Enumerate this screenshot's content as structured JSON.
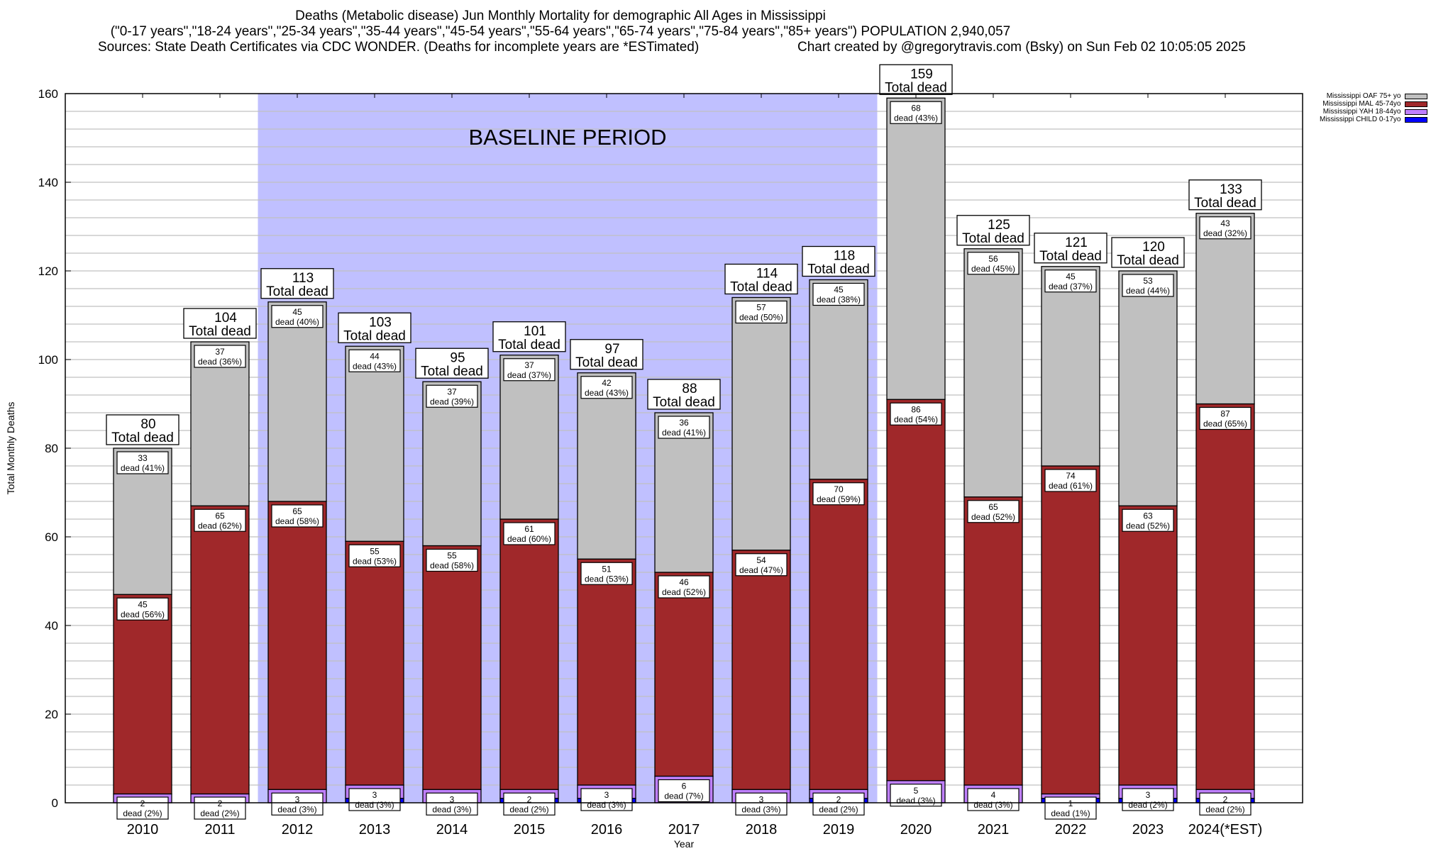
{
  "header": {
    "title": "Deaths (Metabolic disease) Jun Monthly Mortality for demographic All Ages in Mississippi",
    "subtitle": "(\"0-17 years\",\"18-24 years\",\"25-34 years\",\"35-44 years\",\"45-54 years\",\"55-64 years\",\"65-74 years\",\"75-84 years\",\"85+ years\") POPULATION 2,940,057",
    "sources": "Sources: State Death Certificates via CDC WONDER. (Deaths for incomplete years are *ESTimated)",
    "credit": "Chart created by @gregorytravis.com (Bsky) on Sun Feb 02 10:05:05 2025"
  },
  "chart_data": {
    "type": "bar",
    "stacked": true,
    "title": "Deaths (Metabolic disease) Jun Monthly Mortality for demographic All Ages in Mississippi",
    "xlabel": "Year",
    "ylabel": "Total Monthly Deaths",
    "ylim": [
      0,
      160
    ],
    "yticks": [
      0,
      20,
      40,
      60,
      80,
      100,
      120,
      140,
      160
    ],
    "grid": true,
    "legend_position": "top-right",
    "categories": [
      "2010",
      "2011",
      "2012",
      "2013",
      "2014",
      "2015",
      "2016",
      "2017",
      "2018",
      "2019",
      "2020",
      "2021",
      "2022",
      "2023",
      "2024(*EST)"
    ],
    "totals": [
      80,
      104,
      113,
      103,
      95,
      101,
      97,
      88,
      114,
      118,
      159,
      125,
      121,
      120,
      133
    ],
    "total_suffix": "Total dead",
    "label_prefix": "dead",
    "series": [
      {
        "name": "Mississippi CHILD 0-17yo",
        "color": "#0000ff",
        "values": [
          0,
          0,
          0,
          1,
          0,
          1,
          1,
          0,
          0,
          1,
          0,
          0,
          1,
          1,
          1
        ]
      },
      {
        "name": "Mississippi YAH 18-44yo",
        "color": "#c080ff",
        "values": [
          2,
          2,
          3,
          3,
          3,
          2,
          3,
          6,
          3,
          2,
          5,
          4,
          1,
          3,
          2
        ],
        "pct": [
          "2%",
          "2%",
          "3%",
          "3%",
          "3%",
          "2%",
          "3%",
          "7%",
          "3%",
          "2%",
          "3%",
          "3%",
          "1%",
          "2%",
          "2%"
        ]
      },
      {
        "name": "Mississippi MAL 45-74yo",
        "color": "#a0282a",
        "values": [
          45,
          65,
          65,
          55,
          55,
          61,
          51,
          46,
          54,
          70,
          86,
          65,
          74,
          63,
          87
        ],
        "pct": [
          "56%",
          "62%",
          "58%",
          "53%",
          "58%",
          "60%",
          "53%",
          "52%",
          "47%",
          "59%",
          "54%",
          "52%",
          "61%",
          "52%",
          "65%"
        ]
      },
      {
        "name": "Mississippi OAF 75+ yo",
        "color": "#c0c0c0",
        "values": [
          33,
          37,
          45,
          44,
          37,
          37,
          42,
          36,
          57,
          45,
          68,
          56,
          45,
          53,
          43
        ],
        "pct": [
          "41%",
          "36%",
          "40%",
          "43%",
          "39%",
          "37%",
          "43%",
          "41%",
          "50%",
          "38%",
          "43%",
          "45%",
          "37%",
          "44%",
          "32%"
        ]
      }
    ],
    "legend_order": [
      "Mississippi OAF 75+ yo",
      "Mississippi MAL 45-74yo",
      "Mississippi YAH 18-44yo",
      "Mississippi CHILD 0-17yo"
    ],
    "annotation": {
      "text": "BASELINE PERIOD",
      "from": "2012",
      "to": "2019",
      "color": "#c0c0ff"
    }
  }
}
